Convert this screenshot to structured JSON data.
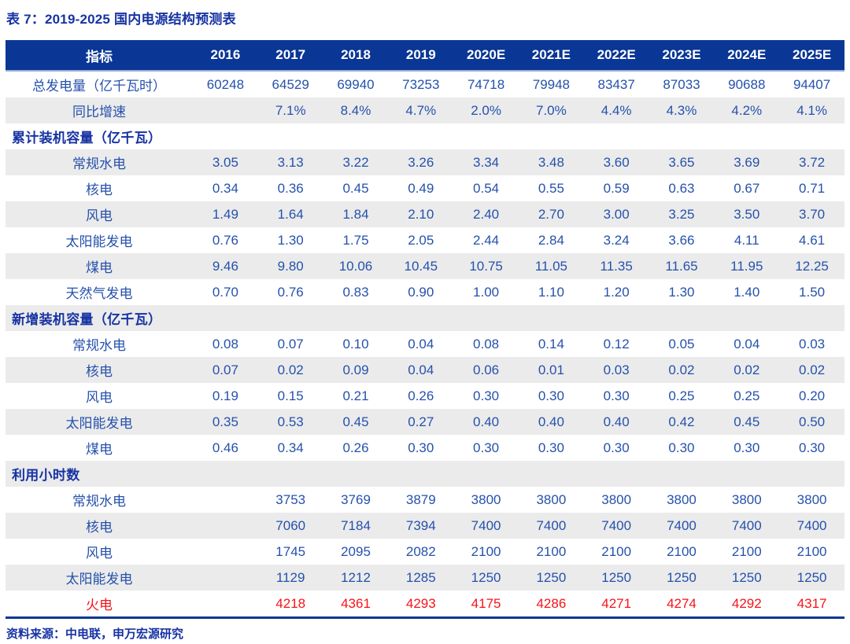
{
  "title": "表 7：2019-2025 国内电源结构预测表",
  "source": "资料来源：中电联，申万宏源研究",
  "colors": {
    "header_bg": "#0A3795",
    "header_text": "#FFFFFF",
    "header_underline": "#9AAEDC",
    "body_text_blue": "#2551AC",
    "bold_navy": "#1733A3",
    "stripe_gray": "#EBEBEB",
    "highlight_red": "#F8121A",
    "bottom_rule": "#0A3795"
  },
  "chart_data": {
    "type": "table",
    "title": "表 7：2019-2025 国内电源结构预测表",
    "columns": [
      "指标",
      "2016",
      "2017",
      "2018",
      "2019",
      "2020E",
      "2021E",
      "2022E",
      "2023E",
      "2024E",
      "2025E"
    ],
    "rows": [
      {
        "label": "总发电量（亿千瓦时）",
        "type": "data",
        "values": [
          "60248",
          "64529",
          "69940",
          "73253",
          "74718",
          "79948",
          "83437",
          "87033",
          "90688",
          "94407"
        ]
      },
      {
        "label": "同比增速",
        "type": "data",
        "values": [
          "",
          "7.1%",
          "8.4%",
          "4.7%",
          "2.0%",
          "7.0%",
          "4.4%",
          "4.3%",
          "4.2%",
          "4.1%"
        ]
      },
      {
        "label": "累计装机容量（亿千瓦）",
        "type": "section",
        "values": [
          "",
          "",
          "",
          "",
          "",
          "",
          "",
          "",
          "",
          ""
        ]
      },
      {
        "label": "常规水电",
        "type": "data",
        "values": [
          "3.05",
          "3.13",
          "3.22",
          "3.26",
          "3.34",
          "3.48",
          "3.60",
          "3.65",
          "3.69",
          "3.72"
        ]
      },
      {
        "label": "核电",
        "type": "data",
        "values": [
          "0.34",
          "0.36",
          "0.45",
          "0.49",
          "0.54",
          "0.55",
          "0.59",
          "0.63",
          "0.67",
          "0.71"
        ]
      },
      {
        "label": "风电",
        "type": "data",
        "values": [
          "1.49",
          "1.64",
          "1.84",
          "2.10",
          "2.40",
          "2.70",
          "3.00",
          "3.25",
          "3.50",
          "3.70"
        ]
      },
      {
        "label": "太阳能发电",
        "type": "data",
        "values": [
          "0.76",
          "1.30",
          "1.75",
          "2.05",
          "2.44",
          "2.84",
          "3.24",
          "3.66",
          "4.11",
          "4.61"
        ]
      },
      {
        "label": "煤电",
        "type": "data",
        "values": [
          "9.46",
          "9.80",
          "10.06",
          "10.45",
          "10.75",
          "11.05",
          "11.35",
          "11.65",
          "11.95",
          "12.25"
        ]
      },
      {
        "label": "天然气发电",
        "type": "data",
        "values": [
          "0.70",
          "0.76",
          "0.83",
          "0.90",
          "1.00",
          "1.10",
          "1.20",
          "1.30",
          "1.40",
          "1.50"
        ]
      },
      {
        "label": "新增装机容量（亿千瓦）",
        "type": "section",
        "values": [
          "",
          "",
          "",
          "",
          "",
          "",
          "",
          "",
          "",
          ""
        ]
      },
      {
        "label": "常规水电",
        "type": "data",
        "values": [
          "0.08",
          "0.07",
          "0.10",
          "0.04",
          "0.08",
          "0.14",
          "0.12",
          "0.05",
          "0.04",
          "0.03"
        ]
      },
      {
        "label": "核电",
        "type": "data",
        "values": [
          "0.07",
          "0.02",
          "0.09",
          "0.04",
          "0.06",
          "0.01",
          "0.03",
          "0.02",
          "0.02",
          "0.02"
        ]
      },
      {
        "label": "风电",
        "type": "data",
        "values": [
          "0.19",
          "0.15",
          "0.21",
          "0.26",
          "0.30",
          "0.30",
          "0.30",
          "0.25",
          "0.25",
          "0.20"
        ]
      },
      {
        "label": "太阳能发电",
        "type": "data",
        "values": [
          "0.35",
          "0.53",
          "0.45",
          "0.27",
          "0.40",
          "0.40",
          "0.40",
          "0.42",
          "0.45",
          "0.50"
        ]
      },
      {
        "label": "煤电",
        "type": "data",
        "values": [
          "0.46",
          "0.34",
          "0.26",
          "0.30",
          "0.30",
          "0.30",
          "0.30",
          "0.30",
          "0.30",
          "0.30"
        ]
      },
      {
        "label": "利用小时数",
        "type": "section",
        "values": [
          "",
          "",
          "",
          "",
          "",
          "",
          "",
          "",
          "",
          ""
        ]
      },
      {
        "label": "常规水电",
        "type": "data",
        "values": [
          "",
          "3753",
          "3769",
          "3879",
          "3800",
          "3800",
          "3800",
          "3800",
          "3800",
          "3800"
        ]
      },
      {
        "label": "核电",
        "type": "data",
        "values": [
          "",
          "7060",
          "7184",
          "7394",
          "7400",
          "7400",
          "7400",
          "7400",
          "7400",
          "7400"
        ]
      },
      {
        "label": "风电",
        "type": "data",
        "values": [
          "",
          "1745",
          "2095",
          "2082",
          "2100",
          "2100",
          "2100",
          "2100",
          "2100",
          "2100"
        ]
      },
      {
        "label": "太阳能发电",
        "type": "data",
        "values": [
          "",
          "1129",
          "1212",
          "1285",
          "1250",
          "1250",
          "1250",
          "1250",
          "1250",
          "1250"
        ]
      },
      {
        "label": "火电",
        "type": "data",
        "highlight": "red",
        "values": [
          "",
          "4218",
          "4361",
          "4293",
          "4175",
          "4286",
          "4271",
          "4274",
          "4292",
          "4317"
        ]
      }
    ]
  }
}
